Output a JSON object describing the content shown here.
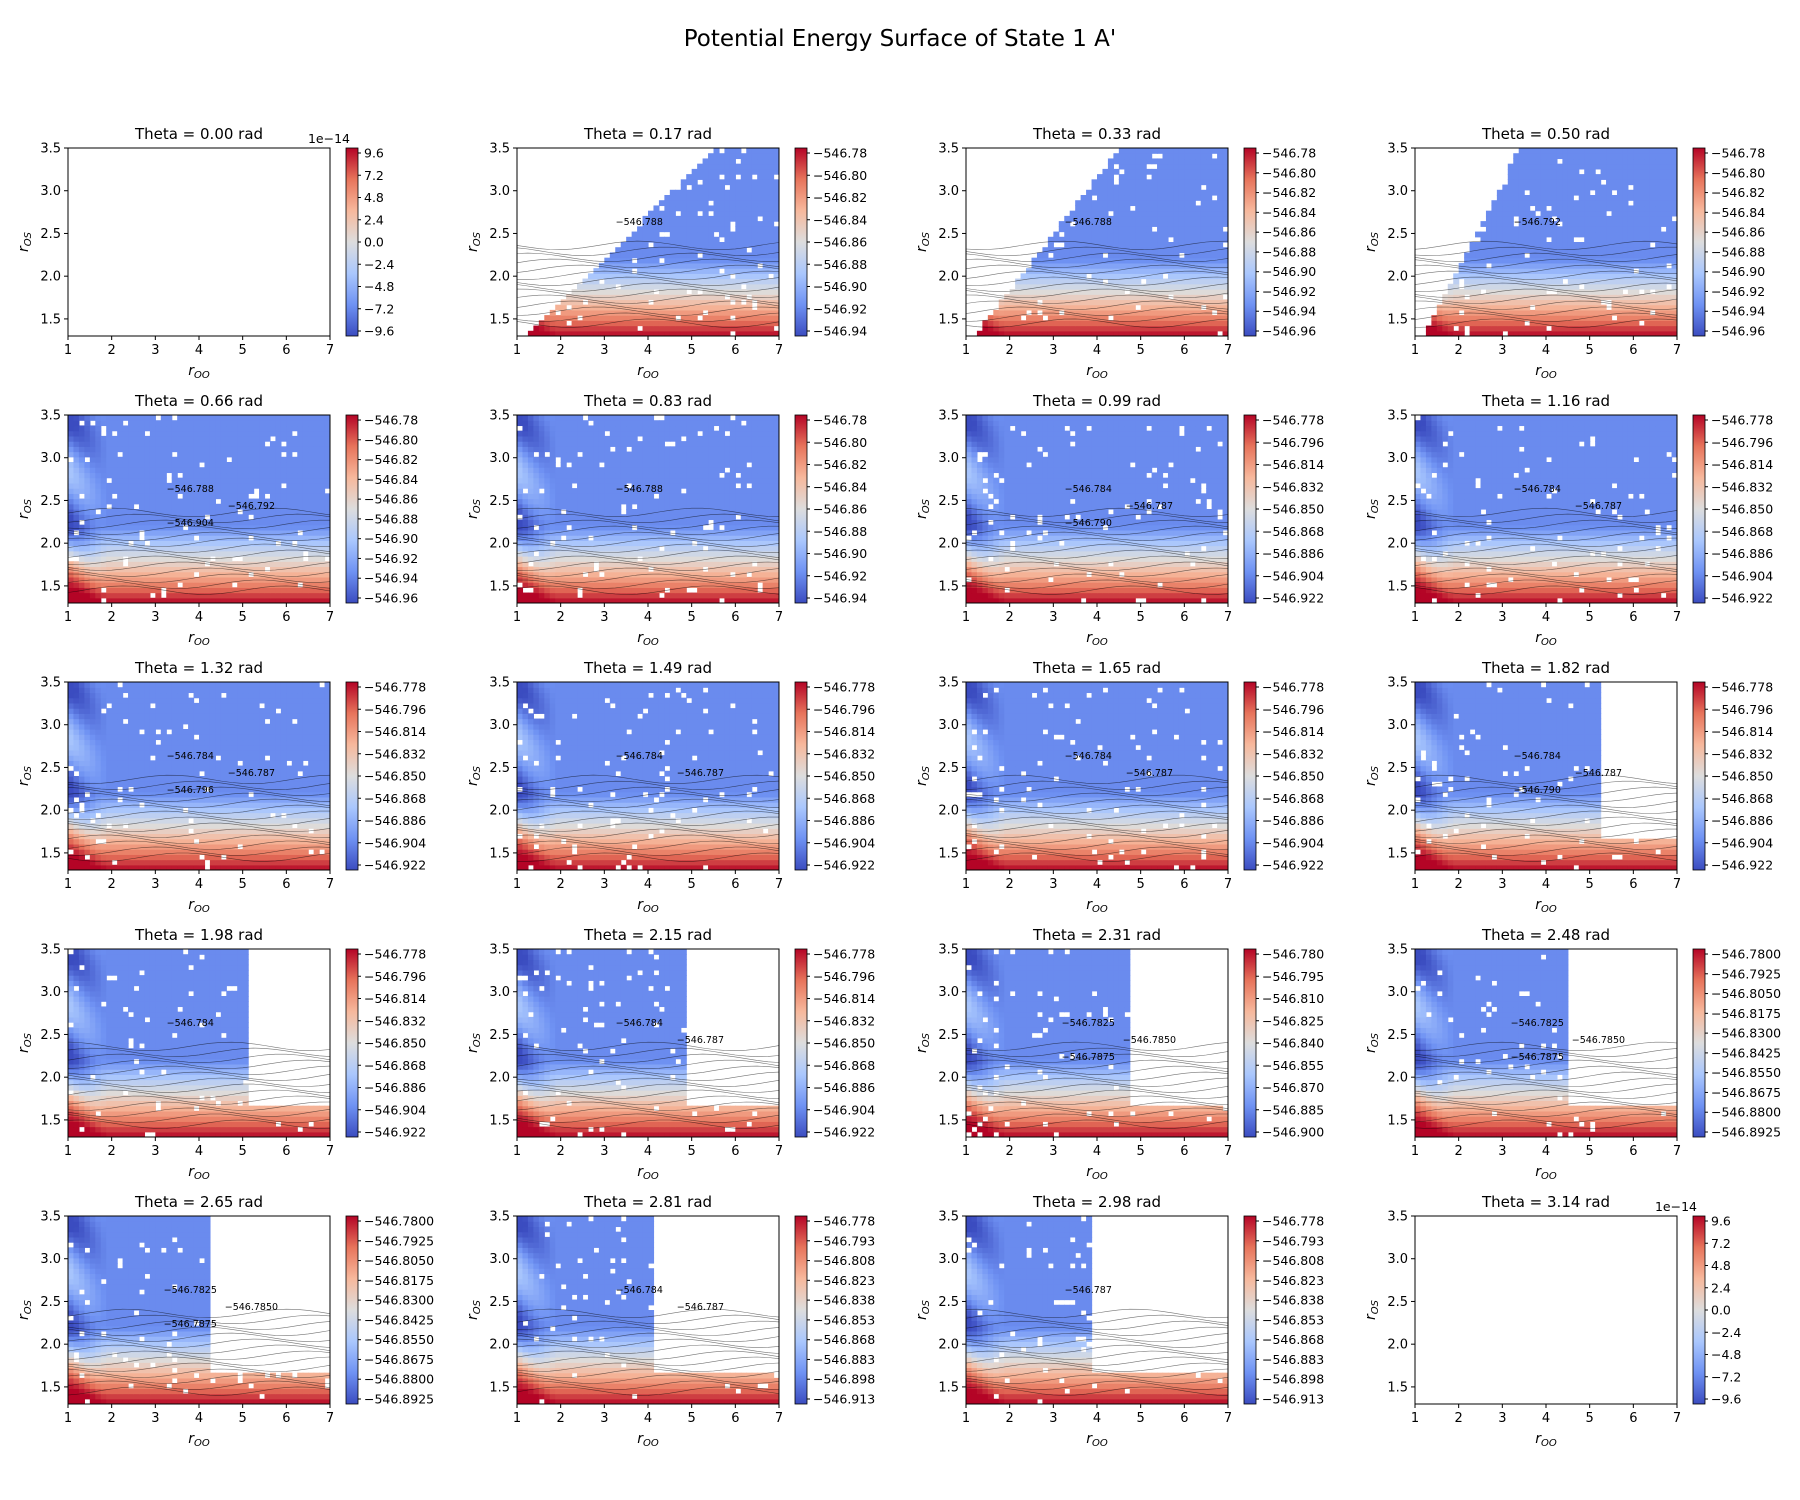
{
  "figure": {
    "title": "Potential Energy Surface of State 1 A'",
    "colormap": [
      "#3b4cc0",
      "#6f92f3",
      "#aac7fd",
      "#dddddd",
      "#f7b89c",
      "#e7745b",
      "#b40426"
    ],
    "empty_color": "#ffffff"
  },
  "chart_data": [
    {
      "type": "heatmap",
      "title": "Theta = 0.00 rad",
      "xlabel": "r_OO",
      "ylabel": "r_OS",
      "xlim": [
        1,
        7
      ],
      "ylim": [
        1.3,
        3.5
      ],
      "xticks": [
        "1",
        "2",
        "3",
        "4",
        "5",
        "6",
        "7"
      ],
      "yticks": [
        "1.5",
        "2.0",
        "2.5",
        "3.0",
        "3.5"
      ],
      "empty": true,
      "colorbar_offset": "1e−14",
      "colorbar_ticks": [
        "9.6",
        "7.2",
        "4.8",
        "2.4",
        "0.0",
        "−2.4",
        "−4.8",
        "−7.2",
        "−9.6"
      ]
    },
    {
      "type": "heatmap",
      "title": "Theta = 0.17 rad",
      "xlabel": "r_OO",
      "ylabel": "r_OS",
      "xlim": [
        1,
        7
      ],
      "ylim": [
        1.3,
        3.5
      ],
      "xticks": [
        "1",
        "2",
        "3",
        "4",
        "5",
        "6",
        "7"
      ],
      "yticks": [
        "1.5",
        "2.0",
        "2.5",
        "3.0",
        "3.5"
      ],
      "empty": false,
      "vmin": -546.94,
      "vmax": -546.78,
      "colorbar_ticks": [
        "−546.78",
        "−546.80",
        "−546.82",
        "−546.84",
        "−546.86",
        "−546.88",
        "−546.90",
        "−546.92",
        "−546.94"
      ],
      "contour_labels": [
        "−546.788"
      ]
    },
    {
      "type": "heatmap",
      "title": "Theta = 0.33 rad",
      "xlabel": "r_OO",
      "ylabel": "r_OS",
      "xlim": [
        1,
        7
      ],
      "ylim": [
        1.3,
        3.5
      ],
      "xticks": [
        "1",
        "2",
        "3",
        "4",
        "5",
        "6",
        "7"
      ],
      "yticks": [
        "1.5",
        "2.0",
        "2.5",
        "3.0",
        "3.5"
      ],
      "empty": false,
      "vmin": -546.96,
      "vmax": -546.78,
      "colorbar_ticks": [
        "−546.78",
        "−546.80",
        "−546.82",
        "−546.84",
        "−546.86",
        "−546.88",
        "−546.90",
        "−546.92",
        "−546.94",
        "−546.96"
      ],
      "contour_labels": [
        "−546.788"
      ]
    },
    {
      "type": "heatmap",
      "title": "Theta = 0.50 rad",
      "xlabel": "r_OO",
      "ylabel": "r_OS",
      "xlim": [
        1,
        7
      ],
      "ylim": [
        1.3,
        3.5
      ],
      "xticks": [
        "1",
        "2",
        "3",
        "4",
        "5",
        "6",
        "7"
      ],
      "yticks": [
        "1.5",
        "2.0",
        "2.5",
        "3.0",
        "3.5"
      ],
      "empty": false,
      "vmin": -546.96,
      "vmax": -546.78,
      "colorbar_ticks": [
        "−546.78",
        "−546.80",
        "−546.82",
        "−546.84",
        "−546.86",
        "−546.88",
        "−546.90",
        "−546.92",
        "−546.94",
        "−546.96"
      ],
      "contour_labels": [
        "−546.792"
      ]
    },
    {
      "type": "heatmap",
      "title": "Theta = 0.66 rad",
      "xlabel": "r_OO",
      "ylabel": "r_OS",
      "xlim": [
        1,
        7
      ],
      "ylim": [
        1.3,
        3.5
      ],
      "xticks": [
        "1",
        "2",
        "3",
        "4",
        "5",
        "6",
        "7"
      ],
      "yticks": [
        "1.5",
        "2.0",
        "2.5",
        "3.0",
        "3.5"
      ],
      "empty": false,
      "vmin": -546.96,
      "vmax": -546.78,
      "colorbar_ticks": [
        "−546.78",
        "−546.80",
        "−546.82",
        "−546.84",
        "−546.86",
        "−546.88",
        "−546.90",
        "−546.92",
        "−546.94",
        "−546.96"
      ],
      "contour_labels": [
        "−546.788",
        "−546.792",
        "−546.904"
      ]
    },
    {
      "type": "heatmap",
      "title": "Theta = 0.83 rad",
      "xlabel": "r_OO",
      "ylabel": "r_OS",
      "xlim": [
        1,
        7
      ],
      "ylim": [
        1.3,
        3.5
      ],
      "xticks": [
        "1",
        "2",
        "3",
        "4",
        "5",
        "6",
        "7"
      ],
      "yticks": [
        "1.5",
        "2.0",
        "2.5",
        "3.0",
        "3.5"
      ],
      "empty": false,
      "vmin": -546.94,
      "vmax": -546.78,
      "colorbar_ticks": [
        "−546.78",
        "−546.80",
        "−546.82",
        "−546.84",
        "−546.86",
        "−546.88",
        "−546.90",
        "−546.92",
        "−546.94"
      ],
      "contour_labels": [
        "−546.788"
      ]
    },
    {
      "type": "heatmap",
      "title": "Theta = 0.99 rad",
      "xlabel": "r_OO",
      "ylabel": "r_OS",
      "xlim": [
        1,
        7
      ],
      "ylim": [
        1.3,
        3.5
      ],
      "xticks": [
        "1",
        "2",
        "3",
        "4",
        "5",
        "6",
        "7"
      ],
      "yticks": [
        "1.5",
        "2.0",
        "2.5",
        "3.0",
        "3.5"
      ],
      "empty": false,
      "vmin": -546.922,
      "vmax": -546.778,
      "colorbar_ticks": [
        "−546.778",
        "−546.796",
        "−546.814",
        "−546.832",
        "−546.850",
        "−546.868",
        "−546.886",
        "−546.904",
        "−546.922"
      ],
      "contour_labels": [
        "−546.784",
        "−546.787",
        "−546.790"
      ]
    },
    {
      "type": "heatmap",
      "title": "Theta = 1.16 rad",
      "xlabel": "r_OO",
      "ylabel": "r_OS",
      "xlim": [
        1,
        7
      ],
      "ylim": [
        1.3,
        3.5
      ],
      "xticks": [
        "1",
        "2",
        "3",
        "4",
        "5",
        "6",
        "7"
      ],
      "yticks": [
        "1.5",
        "2.0",
        "2.5",
        "3.0",
        "3.5"
      ],
      "empty": false,
      "vmin": -546.922,
      "vmax": -546.778,
      "colorbar_ticks": [
        "−546.778",
        "−546.796",
        "−546.814",
        "−546.832",
        "−546.850",
        "−546.868",
        "−546.886",
        "−546.904",
        "−546.922"
      ],
      "contour_labels": [
        "−546.784",
        "−546.787"
      ]
    },
    {
      "type": "heatmap",
      "title": "Theta = 1.32 rad",
      "xlabel": "r_OO",
      "ylabel": "r_OS",
      "xlim": [
        1,
        7
      ],
      "ylim": [
        1.3,
        3.5
      ],
      "xticks": [
        "1",
        "2",
        "3",
        "4",
        "5",
        "6",
        "7"
      ],
      "yticks": [
        "1.5",
        "2.0",
        "2.5",
        "3.0",
        "3.5"
      ],
      "empty": false,
      "vmin": -546.922,
      "vmax": -546.778,
      "colorbar_ticks": [
        "−546.778",
        "−546.796",
        "−546.814",
        "−546.832",
        "−546.850",
        "−546.868",
        "−546.886",
        "−546.904",
        "−546.922"
      ],
      "contour_labels": [
        "−546.784",
        "−546.787",
        "−546.796"
      ]
    },
    {
      "type": "heatmap",
      "title": "Theta = 1.49 rad",
      "xlabel": "r_OO",
      "ylabel": "r_OS",
      "xlim": [
        1,
        7
      ],
      "ylim": [
        1.3,
        3.5
      ],
      "xticks": [
        "1",
        "2",
        "3",
        "4",
        "5",
        "6",
        "7"
      ],
      "yticks": [
        "1.5",
        "2.0",
        "2.5",
        "3.0",
        "3.5"
      ],
      "empty": false,
      "vmin": -546.922,
      "vmax": -546.778,
      "colorbar_ticks": [
        "−546.778",
        "−546.796",
        "−546.814",
        "−546.832",
        "−546.850",
        "−546.868",
        "−546.886",
        "−546.904",
        "−546.922"
      ],
      "contour_labels": [
        "−546.784",
        "−546.787"
      ]
    },
    {
      "type": "heatmap",
      "title": "Theta = 1.65 rad",
      "xlabel": "r_OO",
      "ylabel": "r_OS",
      "xlim": [
        1,
        7
      ],
      "ylim": [
        1.3,
        3.5
      ],
      "xticks": [
        "1",
        "2",
        "3",
        "4",
        "5",
        "6",
        "7"
      ],
      "yticks": [
        "1.5",
        "2.0",
        "2.5",
        "3.0",
        "3.5"
      ],
      "empty": false,
      "vmin": -546.922,
      "vmax": -546.778,
      "colorbar_ticks": [
        "−546.778",
        "−546.796",
        "−546.814",
        "−546.832",
        "−546.850",
        "−546.868",
        "−546.886",
        "−546.904",
        "−546.922"
      ],
      "contour_labels": [
        "−546.784",
        "−546.787"
      ]
    },
    {
      "type": "heatmap",
      "title": "Theta = 1.82 rad",
      "xlabel": "r_OO",
      "ylabel": "r_OS",
      "xlim": [
        1,
        7
      ],
      "ylim": [
        1.3,
        3.5
      ],
      "xticks": [
        "1",
        "2",
        "3",
        "4",
        "5",
        "6",
        "7"
      ],
      "yticks": [
        "1.5",
        "2.0",
        "2.5",
        "3.0",
        "3.5"
      ],
      "empty": false,
      "vmin": -546.922,
      "vmax": -546.778,
      "colorbar_ticks": [
        "−546.778",
        "−546.796",
        "−546.814",
        "−546.832",
        "−546.850",
        "−546.868",
        "−546.886",
        "−546.904",
        "−546.922"
      ],
      "contour_labels": [
        "−546.784",
        "−546.787",
        "−546.790"
      ]
    },
    {
      "type": "heatmap",
      "title": "Theta = 1.98 rad",
      "xlabel": "r_OO",
      "ylabel": "r_OS",
      "xlim": [
        1,
        7
      ],
      "ylim": [
        1.3,
        3.5
      ],
      "xticks": [
        "1",
        "2",
        "3",
        "4",
        "5",
        "6",
        "7"
      ],
      "yticks": [
        "1.5",
        "2.0",
        "2.5",
        "3.0",
        "3.5"
      ],
      "empty": false,
      "vmin": -546.922,
      "vmax": -546.778,
      "colorbar_ticks": [
        "−546.778",
        "−546.796",
        "−546.814",
        "−546.832",
        "−546.850",
        "−546.868",
        "−546.886",
        "−546.904",
        "−546.922"
      ],
      "contour_labels": [
        "−546.784"
      ]
    },
    {
      "type": "heatmap",
      "title": "Theta = 2.15 rad",
      "xlabel": "r_OO",
      "ylabel": "r_OS",
      "xlim": [
        1,
        7
      ],
      "ylim": [
        1.3,
        3.5
      ],
      "xticks": [
        "1",
        "2",
        "3",
        "4",
        "5",
        "6",
        "7"
      ],
      "yticks": [
        "1.5",
        "2.0",
        "2.5",
        "3.0",
        "3.5"
      ],
      "empty": false,
      "vmin": -546.922,
      "vmax": -546.778,
      "colorbar_ticks": [
        "−546.778",
        "−546.796",
        "−546.814",
        "−546.832",
        "−546.850",
        "−546.868",
        "−546.886",
        "−546.904",
        "−546.922"
      ],
      "contour_labels": [
        "−546.784",
        "−546.787"
      ]
    },
    {
      "type": "heatmap",
      "title": "Theta = 2.31 rad",
      "xlabel": "r_OO",
      "ylabel": "r_OS",
      "xlim": [
        1,
        7
      ],
      "ylim": [
        1.3,
        3.5
      ],
      "xticks": [
        "1",
        "2",
        "3",
        "4",
        "5",
        "6",
        "7"
      ],
      "yticks": [
        "1.5",
        "2.0",
        "2.5",
        "3.0",
        "3.5"
      ],
      "empty": false,
      "vmin": -546.9,
      "vmax": -546.78,
      "colorbar_ticks": [
        "−546.780",
        "−546.795",
        "−546.810",
        "−546.825",
        "−546.840",
        "−546.855",
        "−546.870",
        "−546.885",
        "−546.900"
      ],
      "contour_labels": [
        "−546.7825",
        "−546.7850",
        "−546.7875"
      ]
    },
    {
      "type": "heatmap",
      "title": "Theta = 2.48 rad",
      "xlabel": "r_OO",
      "ylabel": "r_OS",
      "xlim": [
        1,
        7
      ],
      "ylim": [
        1.3,
        3.5
      ],
      "xticks": [
        "1",
        "2",
        "3",
        "4",
        "5",
        "6",
        "7"
      ],
      "yticks": [
        "1.5",
        "2.0",
        "2.5",
        "3.0",
        "3.5"
      ],
      "empty": false,
      "vmin": -546.8925,
      "vmax": -546.78,
      "colorbar_ticks": [
        "−546.7800",
        "−546.7925",
        "−546.8050",
        "−546.8175",
        "−546.8300",
        "−546.8425",
        "−546.8550",
        "−546.8675",
        "−546.8800",
        "−546.8925"
      ],
      "contour_labels": [
        "−546.7825",
        "−546.7850",
        "−546.7875"
      ]
    },
    {
      "type": "heatmap",
      "title": "Theta = 2.65 rad",
      "xlabel": "r_OO",
      "ylabel": "r_OS",
      "xlim": [
        1,
        7
      ],
      "ylim": [
        1.3,
        3.5
      ],
      "xticks": [
        "1",
        "2",
        "3",
        "4",
        "5",
        "6",
        "7"
      ],
      "yticks": [
        "1.5",
        "2.0",
        "2.5",
        "3.0",
        "3.5"
      ],
      "empty": false,
      "vmin": -546.8925,
      "vmax": -546.78,
      "colorbar_ticks": [
        "−546.7800",
        "−546.7925",
        "−546.8050",
        "−546.8175",
        "−546.8300",
        "−546.8425",
        "−546.8550",
        "−546.8675",
        "−546.8800",
        "−546.8925"
      ],
      "contour_labels": [
        "−546.7825",
        "−546.7850",
        "−546.7875"
      ]
    },
    {
      "type": "heatmap",
      "title": "Theta = 2.81 rad",
      "xlabel": "r_OO",
      "ylabel": "r_OS",
      "xlim": [
        1,
        7
      ],
      "ylim": [
        1.3,
        3.5
      ],
      "xticks": [
        "1",
        "2",
        "3",
        "4",
        "5",
        "6",
        "7"
      ],
      "yticks": [
        "1.5",
        "2.0",
        "2.5",
        "3.0",
        "3.5"
      ],
      "empty": false,
      "vmin": -546.913,
      "vmax": -546.778,
      "colorbar_ticks": [
        "−546.778",
        "−546.793",
        "−546.808",
        "−546.823",
        "−546.838",
        "−546.853",
        "−546.868",
        "−546.883",
        "−546.898",
        "−546.913"
      ],
      "contour_labels": [
        "−546.784",
        "−546.787"
      ]
    },
    {
      "type": "heatmap",
      "title": "Theta = 2.98 rad",
      "xlabel": "r_OO",
      "ylabel": "r_OS",
      "xlim": [
        1,
        7
      ],
      "ylim": [
        1.3,
        3.5
      ],
      "xticks": [
        "1",
        "2",
        "3",
        "4",
        "5",
        "6",
        "7"
      ],
      "yticks": [
        "1.5",
        "2.0",
        "2.5",
        "3.0",
        "3.5"
      ],
      "empty": false,
      "vmin": -546.913,
      "vmax": -546.778,
      "colorbar_ticks": [
        "−546.778",
        "−546.793",
        "−546.808",
        "−546.823",
        "−546.838",
        "−546.853",
        "−546.868",
        "−546.883",
        "−546.898",
        "−546.913"
      ],
      "contour_labels": [
        "−546.787"
      ]
    },
    {
      "type": "heatmap",
      "title": "Theta = 3.14 rad",
      "xlabel": "r_OO",
      "ylabel": "r_OS",
      "xlim": [
        1,
        7
      ],
      "ylim": [
        1.3,
        3.5
      ],
      "xticks": [
        "1",
        "2",
        "3",
        "4",
        "5",
        "6",
        "7"
      ],
      "yticks": [
        "1.5",
        "2.0",
        "2.5",
        "3.0",
        "3.5"
      ],
      "empty": true,
      "colorbar_offset": "1e−14",
      "colorbar_ticks": [
        "9.6",
        "7.2",
        "4.8",
        "2.4",
        "0.0",
        "−2.4",
        "−4.8",
        "−7.2",
        "−9.6"
      ]
    }
  ]
}
